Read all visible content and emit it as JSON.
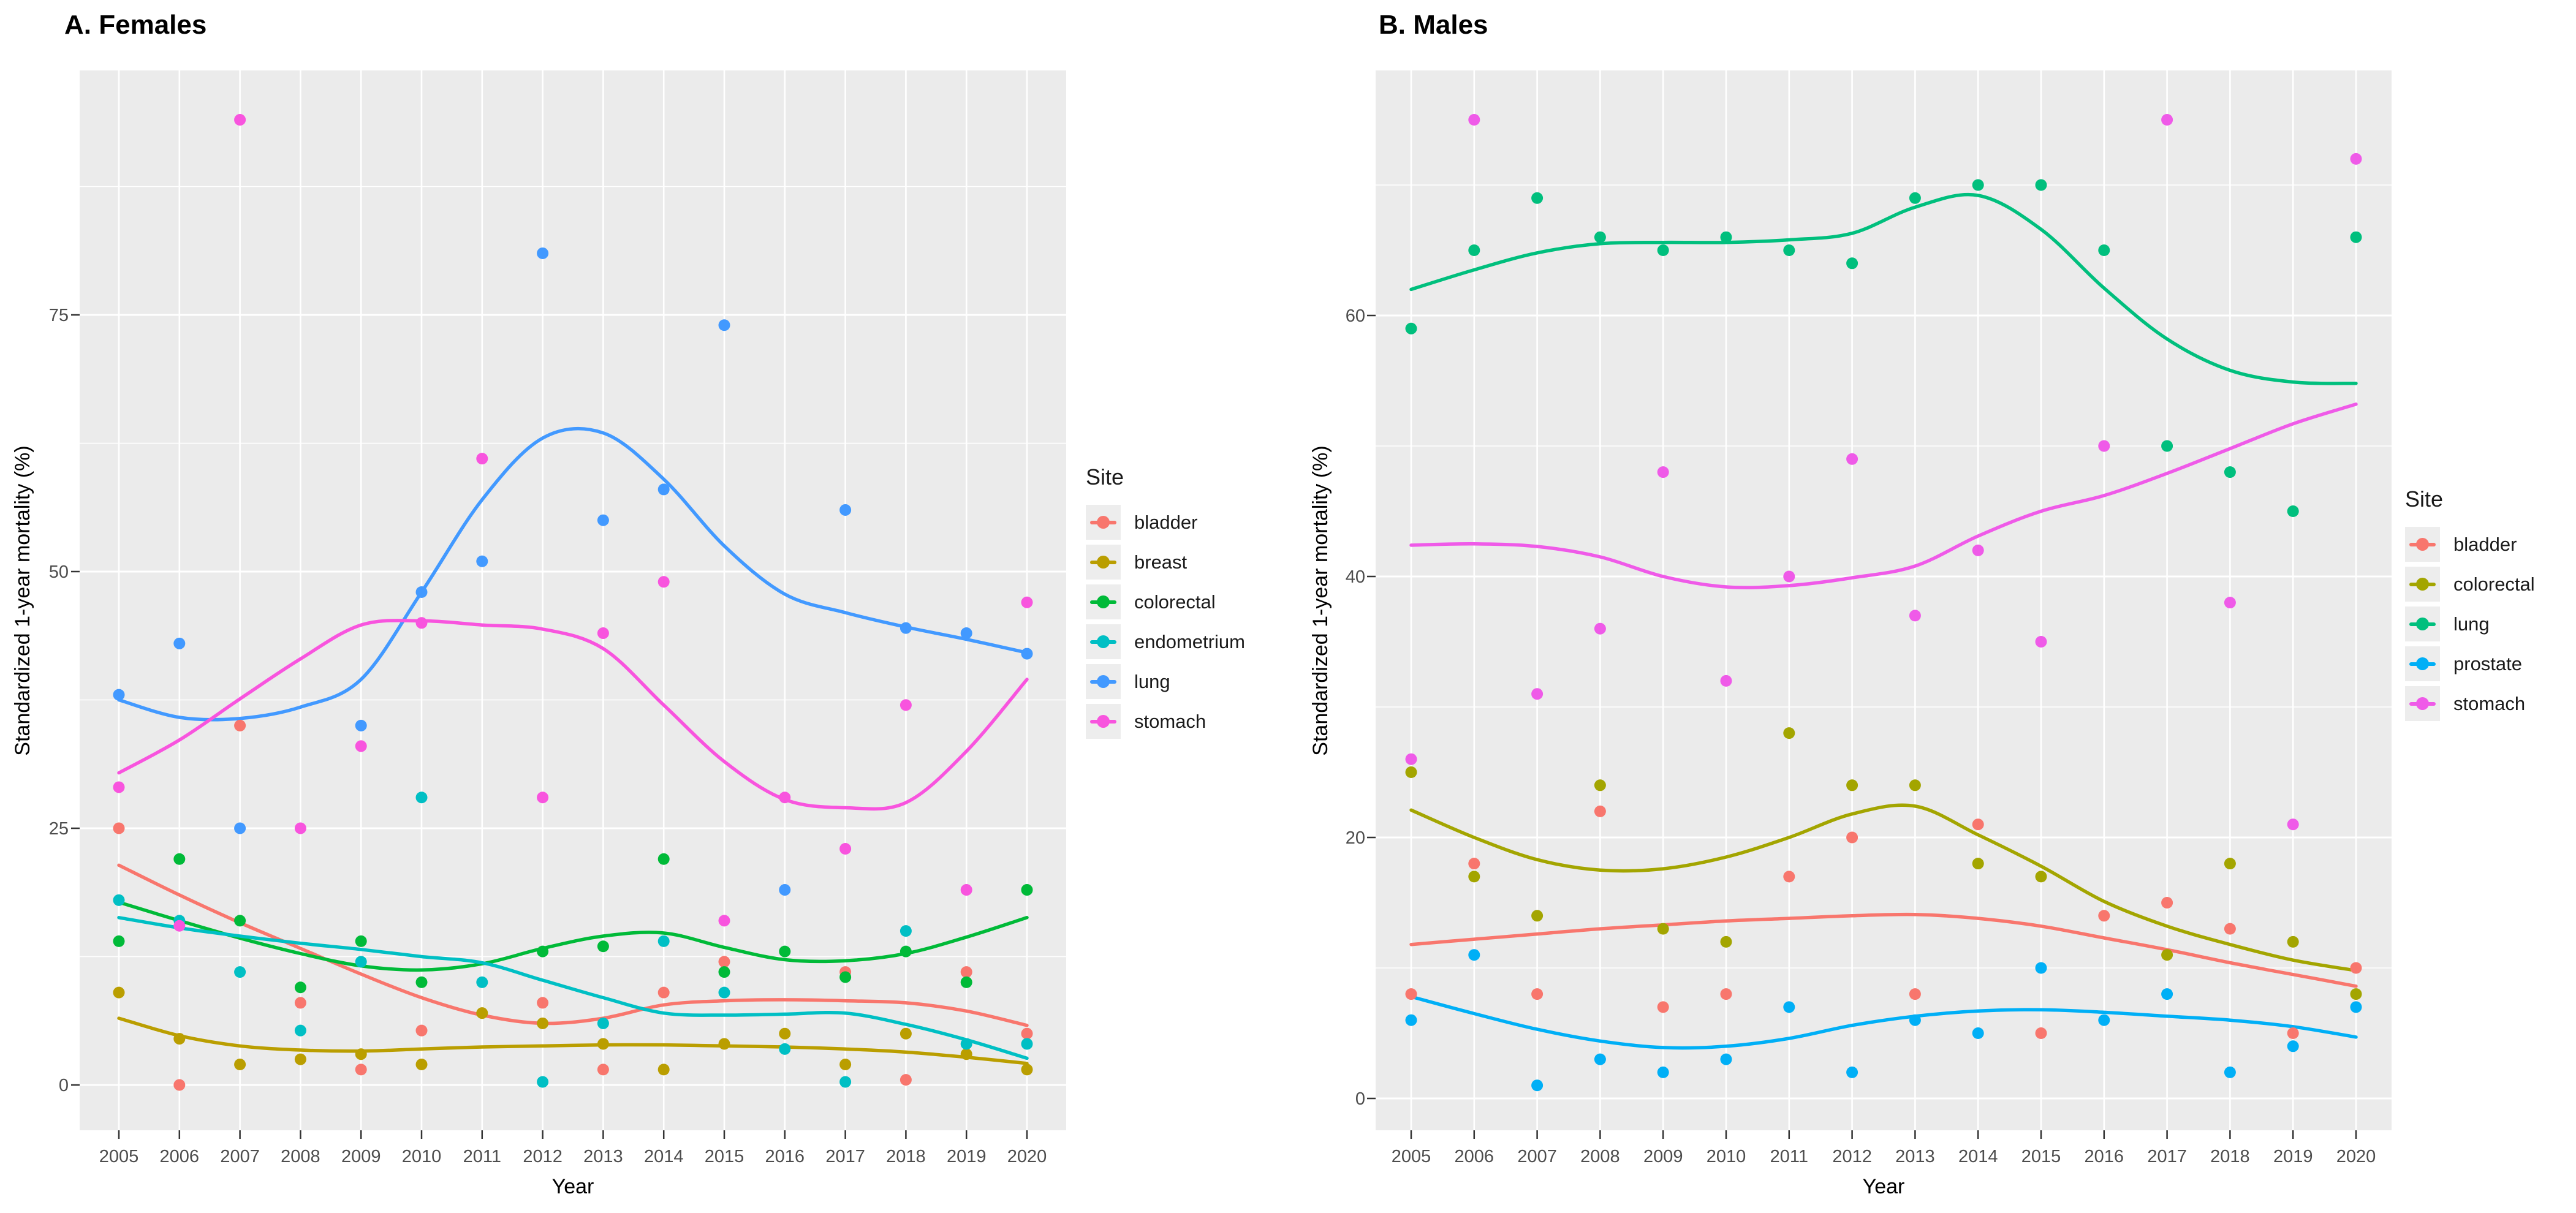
{
  "figure": {
    "background": "#ffffff",
    "panel_background": "#ebebeb",
    "gridline_color": "#ffffff",
    "tick_text_color": "#4d4d4d"
  },
  "chart_data": [
    {
      "type": "scatter",
      "title": "A. Females",
      "xlabel": "Year",
      "ylabel": "Standardized 1-year mortality (%)",
      "legend_title": "Site",
      "legend_position": "right",
      "grid": true,
      "x": [
        2005,
        2006,
        2007,
        2008,
        2009,
        2010,
        2011,
        2012,
        2013,
        2014,
        2015,
        2016,
        2017,
        2018,
        2019,
        2020
      ],
      "x_tick_labels": [
        "2005",
        "2006",
        "2007",
        "2008",
        "2009",
        "2010",
        "2011",
        "2012",
        "2013",
        "2014",
        "2015",
        "2016",
        "2017",
        "2018",
        "2019",
        "2020"
      ],
      "y_ticks": [
        0,
        25,
        50,
        75
      ],
      "y_tick_labels": [
        "0",
        "25",
        "50",
        "75"
      ],
      "y_minor_ticks": [
        12.5,
        37.5,
        62.5,
        87.5
      ],
      "ylim": [
        -4.1,
        98.8
      ],
      "series": [
        {
          "name": "bladder",
          "color": "#F8766D",
          "points": [
            25,
            0,
            35,
            8,
            1.5,
            5.3,
            null,
            8,
            1.5,
            9,
            12,
            null,
            11,
            0.5,
            11,
            5
          ],
          "smooth": [
            21.4,
            18.5,
            15.8,
            13.3,
            10.8,
            8.5,
            6.8,
            6.0,
            6.5,
            7.8,
            8.2,
            8.3,
            8.2,
            8.0,
            7.2,
            5.8
          ]
        },
        {
          "name": "breast",
          "color": "#BA9E00",
          "points": [
            9,
            4.5,
            2,
            2.5,
            3,
            2,
            7,
            6,
            4,
            1.5,
            4,
            5,
            2,
            5,
            3,
            1.5
          ],
          "smooth": [
            6.5,
            4.8,
            3.8,
            3.4,
            3.3,
            3.5,
            3.7,
            3.8,
            3.9,
            3.9,
            3.8,
            3.7,
            3.5,
            3.2,
            2.7,
            2.1
          ]
        },
        {
          "name": "colorectal",
          "color": "#00BA38",
          "points": [
            14,
            22,
            16,
            9.5,
            14,
            10,
            null,
            13,
            13.5,
            22,
            11,
            13,
            10.5,
            13,
            10,
            19
          ],
          "smooth": [
            17.8,
            16.0,
            14.3,
            12.8,
            11.6,
            11.2,
            11.8,
            13.3,
            14.5,
            14.8,
            13.4,
            12.2,
            12.1,
            12.8,
            14.4,
            16.3
          ]
        },
        {
          "name": "endometrium",
          "color": "#00BFC4",
          "points": [
            18,
            16,
            11,
            5.3,
            12,
            28,
            10,
            0.3,
            6,
            14,
            9,
            3.5,
            0.3,
            15,
            4,
            4
          ],
          "smooth": [
            16.3,
            15.3,
            14.5,
            13.8,
            13.2,
            12.5,
            11.9,
            10.2,
            8.5,
            7.0,
            6.8,
            6.9,
            7.0,
            5.9,
            4.4,
            2.6
          ]
        },
        {
          "name": "lung",
          "color": "#4299FF",
          "points": [
            38,
            43,
            25,
            null,
            35,
            48,
            51,
            81,
            55,
            58,
            74,
            19,
            56,
            44.5,
            44,
            42
          ],
          "smooth": [
            37.5,
            35.8,
            35.7,
            36.8,
            39.5,
            48,
            57,
            63,
            63.5,
            59,
            52.5,
            47.8,
            46,
            44.6,
            43.4,
            42.1
          ]
        },
        {
          "name": "stomach",
          "color": "#F854DE",
          "points": [
            29,
            15.5,
            94,
            25,
            33,
            45,
            61,
            28,
            44,
            49,
            16,
            28,
            23,
            37,
            19,
            47
          ],
          "smooth": [
            30.4,
            33.6,
            37.6,
            41.5,
            44.8,
            45.2,
            44.8,
            44.4,
            42.5,
            37,
            31.5,
            27.8,
            27,
            27.5,
            32.5,
            39.5
          ]
        }
      ]
    },
    {
      "type": "scatter",
      "title": "B. Males",
      "xlabel": "Year",
      "ylabel": "Standardized 1-year mortality (%)",
      "legend_title": "Site",
      "legend_position": "right",
      "grid": true,
      "x": [
        2005,
        2006,
        2007,
        2008,
        2009,
        2010,
        2011,
        2012,
        2013,
        2014,
        2015,
        2016,
        2017,
        2018,
        2019,
        2020
      ],
      "x_tick_labels": [
        "2005",
        "2006",
        "2007",
        "2008",
        "2009",
        "2010",
        "2011",
        "2012",
        "2013",
        "2014",
        "2015",
        "2016",
        "2017",
        "2018",
        "2019",
        "2020"
      ],
      "y_ticks": [
        0,
        20,
        40,
        60
      ],
      "y_tick_labels": [
        "0",
        "20",
        "40",
        "60"
      ],
      "y_minor_ticks": [
        10,
        30,
        50,
        70
      ],
      "ylim": [
        -2.2,
        78.8
      ],
      "series": [
        {
          "name": "bladder",
          "color": "#F8766D",
          "points": [
            8,
            18,
            8,
            22,
            7,
            8,
            17,
            20,
            8,
            21,
            5,
            14,
            15,
            13,
            5,
            10
          ],
          "smooth": [
            11.8,
            12.2,
            12.6,
            13,
            13.3,
            13.6,
            13.8,
            14,
            14.1,
            13.8,
            13.2,
            12.3,
            11.4,
            10.4,
            9.5,
            8.6
          ]
        },
        {
          "name": "colorectal",
          "color": "#A3A500",
          "points": [
            25,
            17,
            14,
            24,
            13,
            12,
            28,
            24,
            24,
            18,
            17,
            null,
            11,
            18,
            12,
            8
          ],
          "smooth": [
            22.1,
            20,
            18.3,
            17.5,
            17.6,
            18.5,
            20,
            21.8,
            22.4,
            20.2,
            17.8,
            15.1,
            13.2,
            11.8,
            10.6,
            9.8
          ]
        },
        {
          "name": "lung",
          "color": "#00BF7D",
          "points": [
            59,
            65,
            69,
            66,
            65,
            66,
            65,
            64,
            69,
            70,
            70,
            65,
            50,
            48,
            45,
            66
          ],
          "smooth": [
            62,
            63.5,
            64.8,
            65.5,
            65.6,
            65.6,
            65.8,
            66.3,
            68.3,
            69.2,
            66.6,
            62.1,
            58.2,
            55.8,
            54.9,
            54.8
          ]
        },
        {
          "name": "prostate",
          "color": "#00AFF6",
          "points": [
            6,
            11,
            1,
            3,
            2,
            3,
            7,
            2,
            6,
            5,
            10,
            6,
            8,
            2,
            4,
            7
          ],
          "smooth": [
            7.8,
            6.5,
            5.3,
            4.4,
            3.9,
            4.0,
            4.6,
            5.6,
            6.3,
            6.7,
            6.8,
            6.6,
            6.3,
            6.0,
            5.5,
            4.7
          ]
        },
        {
          "name": "stomach",
          "color": "#EF5AE8",
          "points": [
            26,
            75,
            31,
            36,
            48,
            32,
            40,
            49,
            37,
            42,
            35,
            50,
            75,
            38,
            21,
            72
          ],
          "smooth": [
            42.4,
            42.5,
            42.3,
            41.5,
            40,
            39.2,
            39.3,
            39.9,
            40.8,
            43.1,
            45,
            46.2,
            47.9,
            49.8,
            51.7,
            53.2
          ]
        }
      ]
    }
  ]
}
